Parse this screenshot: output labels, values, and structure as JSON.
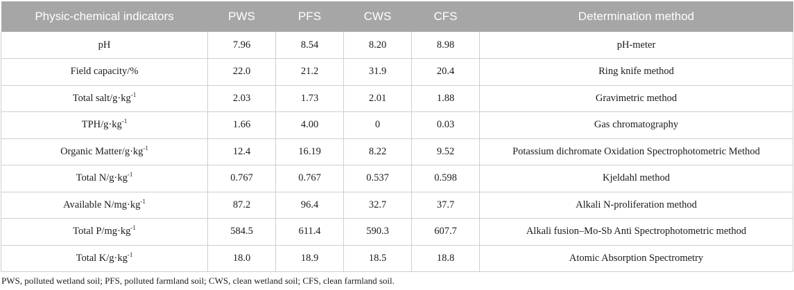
{
  "table": {
    "headers": [
      "Physic-chemical indicators",
      "PWS",
      "PFS",
      "CWS",
      "CFS",
      "Determination method"
    ],
    "rows": [
      {
        "indicator": "pH",
        "sup": "",
        "pws": "7.96",
        "pfs": "8.54",
        "cws": "8.20",
        "cfs": "8.98",
        "method": "pH-meter"
      },
      {
        "indicator": "Field capacity/%",
        "sup": "",
        "pws": "22.0",
        "pfs": "21.2",
        "cws": "31.9",
        "cfs": "20.4",
        "method": "Ring knife method"
      },
      {
        "indicator": "Total salt/g·kg",
        "sup": "-1",
        "pws": "2.03",
        "pfs": "1.73",
        "cws": "2.01",
        "cfs": "1.88",
        "method": "Gravimetric method"
      },
      {
        "indicator": "TPH/g·kg",
        "sup": "-1",
        "pws": "1.66",
        "pfs": "4.00",
        "cws": "0",
        "cfs": "0.03",
        "method": "Gas chromatography"
      },
      {
        "indicator": "Organic Matter/g·kg",
        "sup": "-1",
        "pws": "12.4",
        "pfs": "16.19",
        "cws": "8.22",
        "cfs": "9.52",
        "method": "Potassium dichromate Oxidation Spectrophotometric Method"
      },
      {
        "indicator": "Total N/g·kg",
        "sup": "-1",
        "pws": "0.767",
        "pfs": "0.767",
        "cws": "0.537",
        "cfs": "0.598",
        "method": "Kjeldahl method"
      },
      {
        "indicator": "Available N/mg·kg",
        "sup": "-1",
        "pws": "87.2",
        "pfs": "96.4",
        "cws": "32.7",
        "cfs": "37.7",
        "method": "Alkali N-proliferation method"
      },
      {
        "indicator": "Total P/mg·kg",
        "sup": "-1",
        "pws": "584.5",
        "pfs": "611.4",
        "cws": "590.3",
        "cfs": "607.7",
        "method": "Alkali fusion–Mo-Sb Anti Spectrophotometric method"
      },
      {
        "indicator": "Total K/g·kg",
        "sup": "-1",
        "pws": "18.0",
        "pfs": "18.9",
        "cws": "18.5",
        "cfs": "18.8",
        "method": "Atomic Absorption Spectrometry"
      }
    ]
  },
  "footnote": "PWS, polluted wetland soil; PFS, polluted farmland soil; CWS, clean wetland soil; CFS, clean farmland soil."
}
